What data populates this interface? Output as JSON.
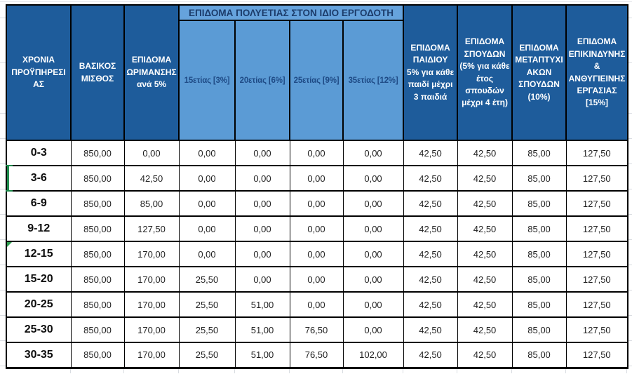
{
  "colors": {
    "header_dark_bg": "#1E5C9B",
    "band_bg": "#66A3DD",
    "subheader_bg": "#5B9BD5",
    "header_text_light": "#FFFFFF",
    "band_text": "#1C3C6B",
    "subheader_text": "#1E4A85",
    "cell_text": "#1F1F1F",
    "border": "#000000",
    "selection_green": "#1E8A4C",
    "error_indicator_green": "#2E9E4F",
    "gridline_gray": "#D9DCE1"
  },
  "table": {
    "band": {
      "title": "ΕΠΙΔΟΜΑ ΠΟΛΥΕΤΙΑΣ ΣΤΟΝ ΙΔΙΟ ΕΡΓΟΔΟΤΗ"
    },
    "header": {
      "left": [
        {
          "title": "ΧΡΟΝΙΑ ΠΡΟΫΠΗΡΕΣΙΑΣ",
          "subtitle": ""
        },
        {
          "title": "ΒΑΣΙΚΟΣ ΜΙΣΘΟΣ",
          "subtitle": ""
        },
        {
          "title": "ΕΠΙΔΟΜΑ ΩΡΙΜΑΝΣΗΣ",
          "subtitle": "ανά 5%"
        }
      ],
      "band_columns": [
        "15ετίας [3%]",
        "20ετίας [6%]",
        "25ετίας [9%]",
        "35ετίας [12%]"
      ],
      "right": [
        {
          "title": "ΕΠΙΔΟΜΑ ΠΑΙΔΙΟΥ",
          "subtitle": "5% για κάθε παιδί μέχρι 3 παιδιά"
        },
        {
          "title": "ΕΠΙΔΟΜΑ ΣΠΟΥΔΩΝ",
          "subtitle": "(5% για κάθε έτος σπουδών μέχρι 4 έτη)"
        },
        {
          "title": "ΕΠΙΔΟΜΑ ΜΕΤΑΠΤΥΧΙΑΚΩΝ ΣΠΟΥΔΩΝ",
          "subtitle": "(10%)"
        },
        {
          "title": "ΕΠΙΔΟΜΑ ΕΠΙΚΙΝΔΥΝΗΣ & ΑΝΘΥΓΙΕΙΝΗΣ ΕΡΓΑΣΙΑΣ",
          "subtitle": "[15%]"
        }
      ]
    },
    "rows": [
      {
        "label": "0-3",
        "values": [
          "850,00",
          "0,00",
          "0,00",
          "0,00",
          "0,00",
          "0,00",
          "42,50",
          "42,50",
          "85,00",
          "127,50"
        ]
      },
      {
        "label": "3-6",
        "values": [
          "850,00",
          "42,50",
          "0,00",
          "0,00",
          "0,00",
          "0,00",
          "42,50",
          "42,50",
          "85,00",
          "127,50"
        ],
        "selected": true
      },
      {
        "label": "6-9",
        "values": [
          "850,00",
          "85,00",
          "0,00",
          "0,00",
          "0,00",
          "0,00",
          "42,50",
          "42,50",
          "85,00",
          "127,50"
        ]
      },
      {
        "label": "9-12",
        "values": [
          "850,00",
          "127,50",
          "0,00",
          "0,00",
          "0,00",
          "0,00",
          "42,50",
          "42,50",
          "85,00",
          "127,50"
        ]
      },
      {
        "label": "12-15",
        "values": [
          "850,00",
          "170,00",
          "0,00",
          "0,00",
          "0,00",
          "0,00",
          "42,50",
          "42,50",
          "85,00",
          "127,50"
        ],
        "error_indicator": true
      },
      {
        "label": "15-20",
        "values": [
          "850,00",
          "170,00",
          "25,50",
          "0,00",
          "0,00",
          "0,00",
          "42,50",
          "42,50",
          "85,00",
          "127,50"
        ]
      },
      {
        "label": "20-25",
        "values": [
          "850,00",
          "170,00",
          "25,50",
          "51,00",
          "0,00",
          "0,00",
          "42,50",
          "42,50",
          "85,00",
          "127,50"
        ]
      },
      {
        "label": "25-30",
        "values": [
          "850,00",
          "170,00",
          "25,50",
          "51,00",
          "76,50",
          "0,00",
          "42,50",
          "42,50",
          "85,00",
          "127,50"
        ]
      },
      {
        "label": "30-35",
        "values": [
          "850,00",
          "170,00",
          "25,50",
          "51,00",
          "76,50",
          "102,00",
          "42,50",
          "42,50",
          "85,00",
          "127,50"
        ]
      }
    ]
  }
}
